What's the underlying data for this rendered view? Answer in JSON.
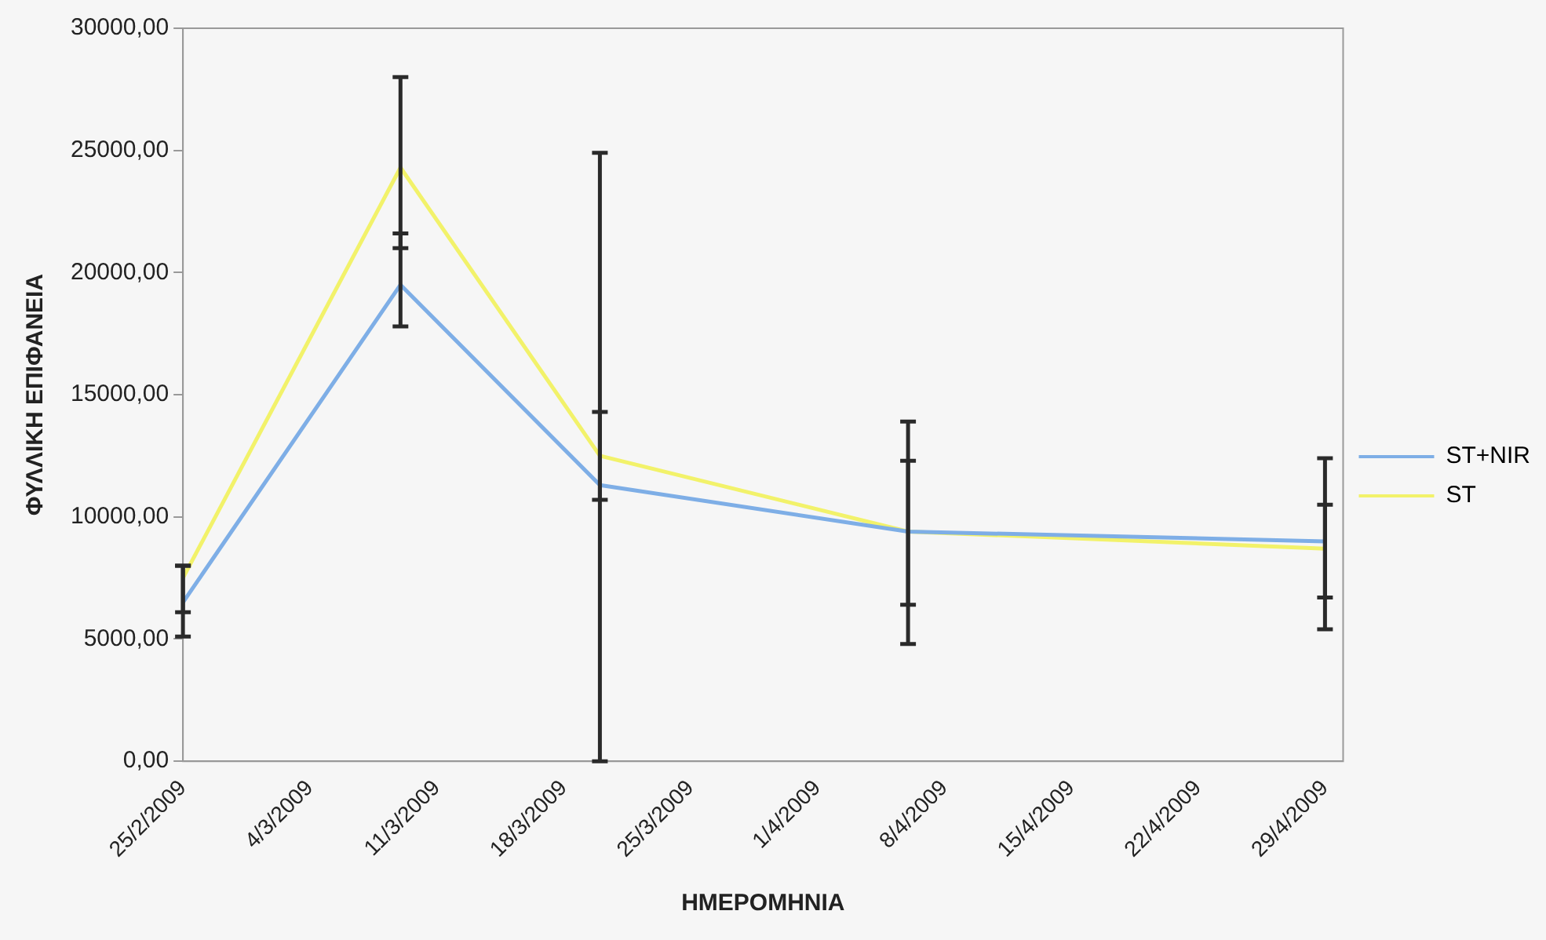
{
  "chart_data": {
    "type": "line",
    "xlabel": "ΗΜΕΡΟΜΗΝΙΑ",
    "ylabel": "ΦΥΛΛΙΚΗ ΕΠΙΦΑΝΕΙΑ",
    "x": [
      "2009-02-25",
      "2009-03-09",
      "2009-03-20",
      "2009-04-06",
      "2009-04-29"
    ],
    "series": [
      {
        "name": "ST+NIR",
        "color": "#7eaee6",
        "values": [
          6500,
          19500,
          11300,
          9400,
          9000
        ],
        "errors": [
          [
            5100,
            8000
          ],
          [
            17800,
            21600
          ],
          [
            10700,
            14300
          ],
          [
            6400,
            12300
          ],
          [
            6700,
            10500
          ]
        ]
      },
      {
        "name": "ST",
        "color": "#f2f26a",
        "values": [
          7500,
          24300,
          12500,
          9400,
          8700
        ],
        "errors": [
          [
            6100,
            8000
          ],
          [
            21000,
            28000
          ],
          [
            0,
            24900
          ],
          [
            4800,
            13900
          ],
          [
            5400,
            12400
          ]
        ]
      }
    ],
    "xlim": [
      "2009-02-25",
      "2009-04-30"
    ],
    "xticks": [
      {
        "value": "2009-02-25",
        "label": "25/2/2009"
      },
      {
        "value": "2009-03-04",
        "label": "4/3/2009"
      },
      {
        "value": "2009-03-11",
        "label": "11/3/2009"
      },
      {
        "value": "2009-03-18",
        "label": "18/3/2009"
      },
      {
        "value": "2009-03-25",
        "label": "25/3/2009"
      },
      {
        "value": "2009-04-01",
        "label": "1/4/2009"
      },
      {
        "value": "2009-04-08",
        "label": "8/4/2009"
      },
      {
        "value": "2009-04-15",
        "label": "15/4/2009"
      },
      {
        "value": "2009-04-22",
        "label": "22/4/2009"
      },
      {
        "value": "2009-04-29",
        "label": "29/4/2009"
      }
    ],
    "ylim": [
      0,
      30000
    ],
    "yticks": [
      {
        "value": 0,
        "label": "0,00"
      },
      {
        "value": 5000,
        "label": "5000,00"
      },
      {
        "value": 10000,
        "label": "10000,00"
      },
      {
        "value": 15000,
        "label": "15000,00"
      },
      {
        "value": 20000,
        "label": "20000,00"
      },
      {
        "value": 25000,
        "label": "25000,00"
      },
      {
        "value": 30000,
        "label": "30000,00"
      }
    ],
    "grid": false,
    "legend": "right",
    "marker": "none",
    "line_style": "solid"
  }
}
